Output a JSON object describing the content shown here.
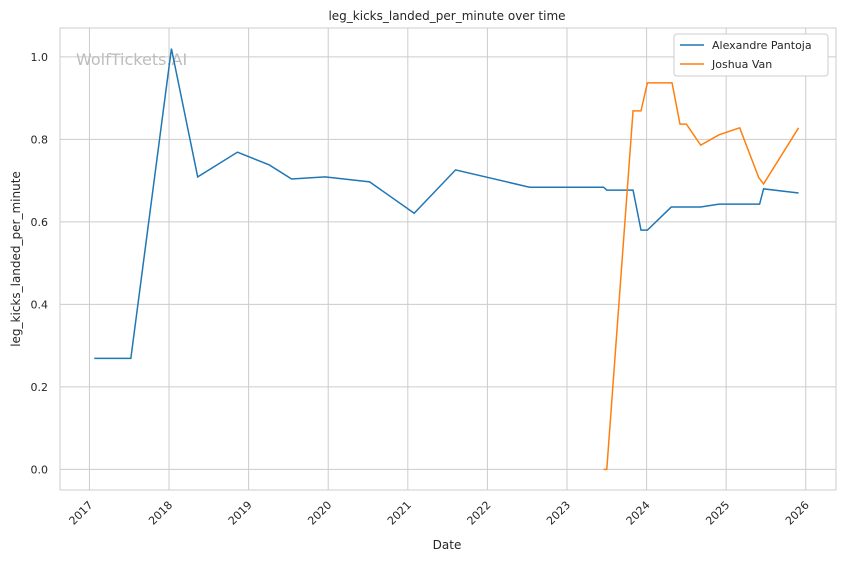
{
  "chart_data": {
    "type": "line",
    "title": "leg_kicks_landed_per_minute over time",
    "xlabel": "Date",
    "ylabel": "leg_kicks_landed_per_minute",
    "watermark": "WolfTickets.AI",
    "xlim": [
      2016.63,
      2026.38
    ],
    "ylim": [
      -0.05,
      1.07
    ],
    "x_ticks": [
      "2017",
      "2018",
      "2019",
      "2020",
      "2021",
      "2022",
      "2023",
      "2024",
      "2025",
      "2026"
    ],
    "y_ticks": [
      "0.0",
      "0.2",
      "0.4",
      "0.6",
      "0.8",
      "1.0"
    ],
    "grid": true,
    "legend_position": "top-right",
    "series": [
      {
        "name": "Alexandre Pantoja",
        "color": "#1f77b4",
        "x": [
          2017.06,
          2017.52,
          2018.03,
          2018.36,
          2018.86,
          2019.26,
          2019.54,
          2019.96,
          2020.52,
          2021.08,
          2021.6,
          2022.53,
          2023.46,
          2023.5,
          2023.83,
          2023.93,
          2024.01,
          2024.31,
          2024.68,
          2024.91,
          2025.42,
          2025.47,
          2025.91
        ],
        "y": [
          0.269,
          0.269,
          1.02,
          0.709,
          0.769,
          0.738,
          0.704,
          0.709,
          0.697,
          0.621,
          0.726,
          0.684,
          0.684,
          0.677,
          0.677,
          0.58,
          0.58,
          0.636,
          0.636,
          0.643,
          0.643,
          0.68,
          0.67
        ]
      },
      {
        "name": "Joshua Van",
        "color": "#ff7f0e",
        "x": [
          2023.46,
          2023.5,
          2023.83,
          2023.93,
          2024.01,
          2024.32,
          2024.42,
          2024.5,
          2024.68,
          2024.91,
          2025.17,
          2025.41,
          2025.47,
          2025.91
        ],
        "y": [
          0.0,
          0.0,
          0.869,
          0.869,
          0.937,
          0.937,
          0.837,
          0.837,
          0.786,
          0.811,
          0.828,
          0.707,
          0.692,
          0.828
        ]
      }
    ]
  }
}
